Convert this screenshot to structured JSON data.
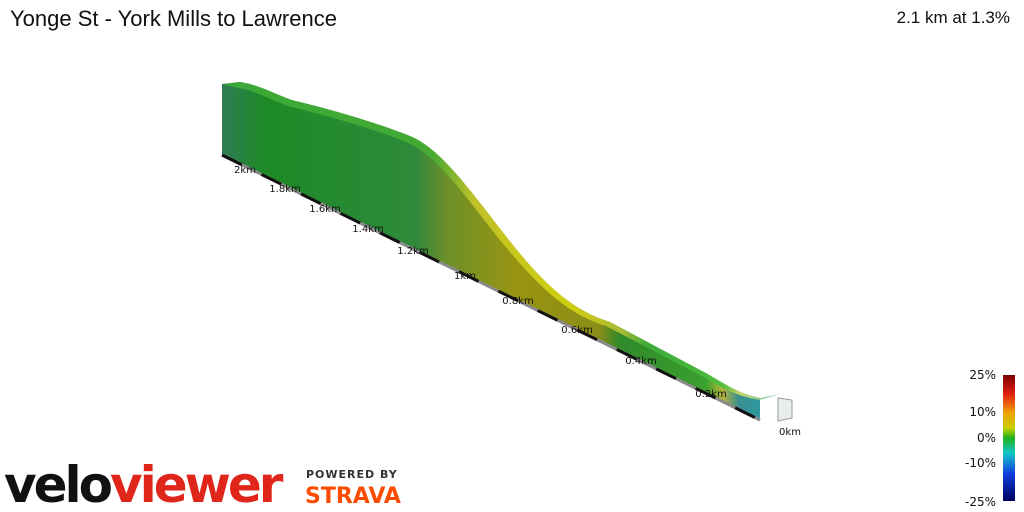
{
  "header": {
    "title": "Yonge St - York Mills to Lawrence",
    "summary": "2.1 km at 1.3%"
  },
  "distance_labels": [
    "2km",
    "1.8km",
    "1.6km",
    "1.4km",
    "1.2km",
    "1km",
    "0.8km",
    "0.6km",
    "0.4km",
    "0.2km",
    "0km"
  ],
  "color_scale": {
    "labels": [
      "25%",
      "10%",
      "0%",
      "-10%",
      "-25%"
    ]
  },
  "branding": {
    "logo_start": "velo",
    "logo_end": "viewer",
    "powered_by": "POWERED BY",
    "partner": "STRAVA"
  }
}
